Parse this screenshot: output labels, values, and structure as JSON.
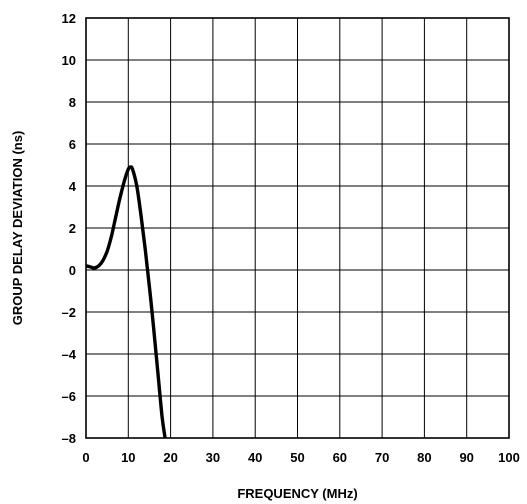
{
  "chart_data": {
    "type": "line",
    "xlabel": "FREQUENCY (MHz)",
    "ylabel": "GROUP DELAY DEVIATION (ns)",
    "xlim": [
      0,
      100
    ],
    "ylim": [
      -8,
      12
    ],
    "x_ticks": [
      0,
      10,
      20,
      30,
      40,
      50,
      60,
      70,
      80,
      90,
      100
    ],
    "y_ticks": [
      12,
      10,
      8,
      6,
      4,
      2,
      0,
      -2,
      -4,
      -6,
      -8
    ],
    "x_tick_labels": [
      "0",
      "10",
      "20",
      "30",
      "40",
      "50",
      "60",
      "70",
      "80",
      "90",
      "100"
    ],
    "y_tick_labels": [
      "12",
      "10",
      "8",
      "6",
      "4",
      "2",
      "0",
      "–2",
      "–4",
      "–6",
      "–8"
    ],
    "grid": true,
    "series": [
      {
        "x": [
          0,
          1,
          2,
          3,
          4,
          5,
          6,
          7,
          8,
          9,
          10,
          10.5,
          11,
          12,
          13,
          14,
          15,
          16,
          17,
          18,
          18.7
        ],
        "y": [
          0.2,
          0.15,
          0.1,
          0.2,
          0.45,
          0.9,
          1.6,
          2.5,
          3.4,
          4.2,
          4.8,
          4.9,
          4.8,
          4.0,
          2.6,
          1.0,
          -0.8,
          -2.8,
          -4.9,
          -7.0,
          -8.0
        ],
        "color": "#000000"
      }
    ]
  }
}
